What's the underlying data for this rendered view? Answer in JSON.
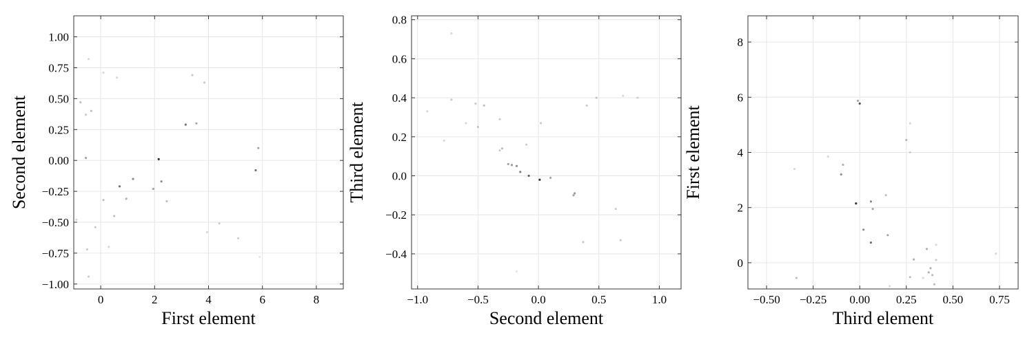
{
  "chart_data": [
    {
      "type": "scatter",
      "xlabel": "First element",
      "ylabel": "Second element",
      "xlim": [
        -1.0,
        9.0
      ],
      "ylim": [
        -1.04,
        1.17
      ],
      "xticks": [
        0,
        2,
        4,
        6,
        8
      ],
      "xtick_labels": [
        "0",
        "2",
        "4",
        "6",
        "8"
      ],
      "yticks": [
        -1.0,
        -0.75,
        -0.5,
        -0.25,
        0.0,
        0.25,
        0.5,
        0.75,
        1.0
      ],
      "ytick_labels": [
        "−1.00",
        "−0.75",
        "−0.50",
        "−0.25",
        "0.00",
        "0.25",
        "0.50",
        "0.75",
        "1.00"
      ],
      "grid": true,
      "color": "#000000",
      "points": [
        {
          "x": 2.15,
          "y": 0.01,
          "a": 0.8
        },
        {
          "x": 3.15,
          "y": 0.29,
          "a": 0.55
        },
        {
          "x": 3.55,
          "y": 0.3,
          "a": 0.35
        },
        {
          "x": 0.7,
          "y": -0.21,
          "a": 0.55
        },
        {
          "x": 1.2,
          "y": -0.15,
          "a": 0.45
        },
        {
          "x": 2.25,
          "y": -0.17,
          "a": 0.45
        },
        {
          "x": 1.95,
          "y": -0.23,
          "a": 0.35
        },
        {
          "x": 0.95,
          "y": -0.31,
          "a": 0.3
        },
        {
          "x": 2.45,
          "y": -0.33,
          "a": 0.25
        },
        {
          "x": 0.1,
          "y": -0.32,
          "a": 0.25
        },
        {
          "x": 5.75,
          "y": -0.08,
          "a": 0.55
        },
        {
          "x": 5.85,
          "y": 0.1,
          "a": 0.35
        },
        {
          "x": -0.55,
          "y": 0.02,
          "a": 0.35
        },
        {
          "x": -0.35,
          "y": 0.4,
          "a": 0.25
        },
        {
          "x": -0.75,
          "y": 0.47,
          "a": 0.25
        },
        {
          "x": -0.55,
          "y": 0.37,
          "a": 0.2
        },
        {
          "x": -0.45,
          "y": 0.82,
          "a": 0.15
        },
        {
          "x": 0.1,
          "y": 0.71,
          "a": 0.15
        },
        {
          "x": 0.6,
          "y": 0.67,
          "a": 0.15
        },
        {
          "x": 3.4,
          "y": 0.69,
          "a": 0.2
        },
        {
          "x": 3.85,
          "y": 0.63,
          "a": 0.2
        },
        {
          "x": 0.5,
          "y": -0.45,
          "a": 0.25
        },
        {
          "x": -0.2,
          "y": -0.54,
          "a": 0.2
        },
        {
          "x": 4.4,
          "y": -0.51,
          "a": 0.2
        },
        {
          "x": 3.95,
          "y": -0.58,
          "a": 0.15
        },
        {
          "x": 5.1,
          "y": -0.63,
          "a": 0.2
        },
        {
          "x": 0.3,
          "y": -0.7,
          "a": 0.15
        },
        {
          "x": -0.5,
          "y": -0.72,
          "a": 0.2
        },
        {
          "x": -0.45,
          "y": -0.94,
          "a": 0.2
        },
        {
          "x": -0.9,
          "y": -0.48,
          "a": 0.15
        },
        {
          "x": 5.9,
          "y": -0.78,
          "a": 0.1
        }
      ]
    },
    {
      "type": "scatter",
      "xlabel": "Second element",
      "ylabel": "Third element",
      "xlim": [
        -1.05,
        1.18
      ],
      "ylim": [
        -0.58,
        0.82
      ],
      "xticks": [
        -1.0,
        -0.5,
        0.0,
        0.5,
        1.0
      ],
      "xtick_labels": [
        "−1.0",
        "−0.5",
        "0.0",
        "0.5",
        "1.0"
      ],
      "yticks": [
        -0.4,
        -0.2,
        0.0,
        0.2,
        0.4,
        0.6,
        0.8
      ],
      "ytick_labels": [
        "−0.4",
        "−0.2",
        "0.0",
        "0.2",
        "0.4",
        "0.6",
        "0.8"
      ],
      "grid": true,
      "color": "#000000",
      "points": [
        {
          "x": 0.01,
          "y": -0.02,
          "a": 0.8
        },
        {
          "x": -0.08,
          "y": 0.0,
          "a": 0.6
        },
        {
          "x": -0.15,
          "y": 0.02,
          "a": 0.5
        },
        {
          "x": -0.18,
          "y": 0.05,
          "a": 0.45
        },
        {
          "x": -0.22,
          "y": 0.055,
          "a": 0.4
        },
        {
          "x": -0.25,
          "y": 0.06,
          "a": 0.35
        },
        {
          "x": 0.1,
          "y": -0.01,
          "a": 0.35
        },
        {
          "x": 0.3,
          "y": -0.09,
          "a": 0.4
        },
        {
          "x": 0.29,
          "y": -0.1,
          "a": 0.35
        },
        {
          "x": -0.3,
          "y": 0.14,
          "a": 0.25
        },
        {
          "x": -0.32,
          "y": 0.13,
          "a": 0.2
        },
        {
          "x": -0.1,
          "y": 0.16,
          "a": 0.2
        },
        {
          "x": -0.5,
          "y": 0.25,
          "a": 0.2
        },
        {
          "x": -0.32,
          "y": 0.29,
          "a": 0.2
        },
        {
          "x": 0.02,
          "y": 0.27,
          "a": 0.2
        },
        {
          "x": -0.45,
          "y": 0.36,
          "a": 0.25
        },
        {
          "x": -0.52,
          "y": 0.37,
          "a": 0.2
        },
        {
          "x": -0.72,
          "y": 0.39,
          "a": 0.2
        },
        {
          "x": 0.4,
          "y": 0.36,
          "a": 0.2
        },
        {
          "x": 0.48,
          "y": 0.4,
          "a": 0.2
        },
        {
          "x": 0.7,
          "y": 0.41,
          "a": 0.15
        },
        {
          "x": 0.82,
          "y": 0.4,
          "a": 0.15
        },
        {
          "x": -0.92,
          "y": 0.33,
          "a": 0.15
        },
        {
          "x": -0.6,
          "y": 0.27,
          "a": 0.15
        },
        {
          "x": -0.78,
          "y": 0.18,
          "a": 0.15
        },
        {
          "x": -0.72,
          "y": 0.73,
          "a": 0.15
        },
        {
          "x": 0.64,
          "y": -0.17,
          "a": 0.2
        },
        {
          "x": 0.37,
          "y": -0.34,
          "a": 0.2
        },
        {
          "x": 0.68,
          "y": -0.33,
          "a": 0.2
        },
        {
          "x": -0.18,
          "y": -0.49,
          "a": 0.1
        }
      ]
    },
    {
      "type": "scatter",
      "xlabel": "Third element",
      "ylabel": "First element",
      "xlim": [
        -0.6,
        0.85
      ],
      "ylim": [
        -0.95,
        8.95
      ],
      "xticks": [
        -0.5,
        -0.25,
        0.0,
        0.25,
        0.5,
        0.75
      ],
      "xtick_labels": [
        "−0.50",
        "−0.25",
        "0.00",
        "0.25",
        "0.50",
        "0.75"
      ],
      "yticks": [
        0,
        2,
        4,
        6,
        8
      ],
      "ytick_labels": [
        "0",
        "2",
        "4",
        "6",
        "8"
      ],
      "grid": true,
      "color": "#000000",
      "points": [
        {
          "x": -0.02,
          "y": 2.15,
          "a": 0.8
        },
        {
          "x": 0.0,
          "y": 5.77,
          "a": 0.65
        },
        {
          "x": -0.01,
          "y": 5.87,
          "a": 0.35
        },
        {
          "x": -0.1,
          "y": 3.2,
          "a": 0.45
        },
        {
          "x": -0.09,
          "y": 3.55,
          "a": 0.3
        },
        {
          "x": 0.06,
          "y": 2.22,
          "a": 0.45
        },
        {
          "x": 0.07,
          "y": 1.95,
          "a": 0.35
        },
        {
          "x": 0.02,
          "y": 1.2,
          "a": 0.45
        },
        {
          "x": 0.06,
          "y": 0.73,
          "a": 0.55
        },
        {
          "x": 0.15,
          "y": 1.0,
          "a": 0.35
        },
        {
          "x": 0.14,
          "y": 2.45,
          "a": 0.25
        },
        {
          "x": 0.25,
          "y": 4.45,
          "a": 0.25
        },
        {
          "x": 0.27,
          "y": 5.05,
          "a": 0.15
        },
        {
          "x": 0.27,
          "y": 4.0,
          "a": 0.15
        },
        {
          "x": 0.29,
          "y": 0.12,
          "a": 0.3
        },
        {
          "x": 0.27,
          "y": -0.52,
          "a": 0.25
        },
        {
          "x": 0.36,
          "y": 0.5,
          "a": 0.3
        },
        {
          "x": 0.38,
          "y": -0.2,
          "a": 0.3
        },
        {
          "x": 0.37,
          "y": -0.35,
          "a": 0.3
        },
        {
          "x": 0.39,
          "y": -0.45,
          "a": 0.25
        },
        {
          "x": 0.4,
          "y": -0.78,
          "a": 0.25
        },
        {
          "x": 0.41,
          "y": 0.1,
          "a": 0.2
        },
        {
          "x": 0.41,
          "y": 0.65,
          "a": 0.15
        },
        {
          "x": -0.34,
          "y": -0.55,
          "a": 0.25
        },
        {
          "x": -0.35,
          "y": 3.4,
          "a": 0.15
        },
        {
          "x": -0.17,
          "y": 3.85,
          "a": 0.15
        },
        {
          "x": 0.16,
          "y": -0.85,
          "a": 0.15
        },
        {
          "x": 0.73,
          "y": 0.33,
          "a": 0.15
        },
        {
          "x": 0.34,
          "y": -0.55,
          "a": 0.15
        }
      ]
    }
  ]
}
